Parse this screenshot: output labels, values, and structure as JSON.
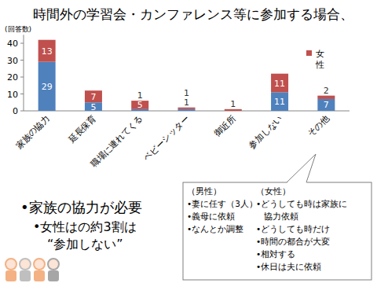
{
  "chart_data": {
    "type": "bar",
    "title": "時間外の学習会・カンファレンス等に参加する場合、",
    "y_label": "(回答数)",
    "categories": [
      "家族の協力",
      "延長保育",
      "職場に連れてくる",
      "ベビーシッター",
      "御近所",
      "参加しない",
      "その他"
    ],
    "series": [
      {
        "color": "#4f81bd",
        "values": [
          29,
          5,
          1,
          1,
          null,
          11,
          7
        ]
      },
      {
        "name": "女性",
        "color": "#c0504d",
        "values": [
          13,
          7,
          5,
          1,
          1,
          11,
          2
        ]
      }
    ],
    "stacked": true,
    "data_labels": true,
    "grid": false,
    "legend": "top-right",
    "ylim": [
      0,
      45
    ],
    "yticks": [
      0,
      10,
      20,
      30,
      40
    ]
  },
  "summary": {
    "heading": "•家族の協力が必要",
    "sub": [
      "•女性はの約3割は",
      "“参加しない”"
    ]
  },
  "callout": {
    "male_heading": "（男性）",
    "male_items": [
      "•妻に任す（3人）",
      "•義母に依頼",
      "•なんとか調整"
    ],
    "female_heading": "（女性）",
    "female_items": [
      [
        "•どうしても時は家族に",
        "協力依頼"
      ],
      [
        "•どうしても時だけ"
      ],
      [
        "•時間の都合が大変"
      ],
      [
        "•相対する"
      ],
      [
        "•休日は夫に依頼"
      ]
    ]
  }
}
